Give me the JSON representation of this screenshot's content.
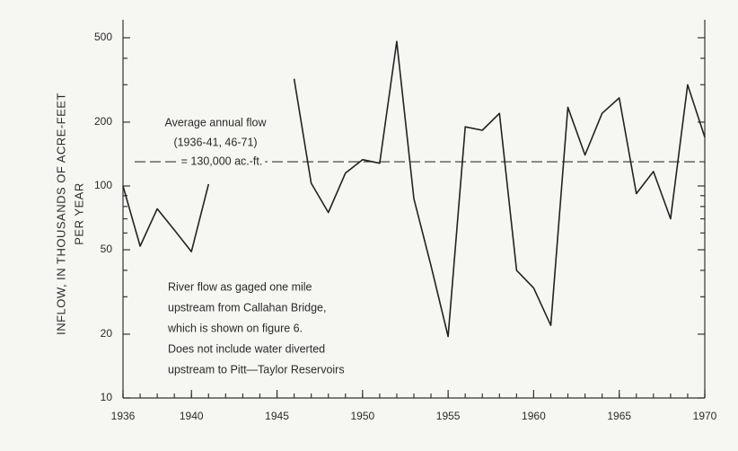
{
  "chart_data": {
    "type": "line",
    "y_label": [
      "INFLOW, IN THOUSANDS OF ACRE-FEET",
      "PER YEAR"
    ],
    "x": [
      1936,
      1937,
      1938,
      1939,
      1940,
      1941,
      1942,
      1943,
      1944,
      1945,
      1946,
      1947,
      1948,
      1949,
      1950,
      1951,
      1952,
      1953,
      1954,
      1955,
      1956,
      1957,
      1958,
      1959,
      1960,
      1961,
      1962,
      1963,
      1964,
      1965,
      1966,
      1967,
      1968,
      1969,
      1970
    ],
    "series": [
      {
        "name": "Inflow",
        "color": "#222222",
        "values": [
          100,
          52,
          78,
          62,
          49,
          102,
          null,
          null,
          null,
          null,
          320,
          103,
          75,
          115,
          133,
          128,
          480,
          87,
          42,
          19.5,
          190,
          183,
          220,
          40,
          33,
          22,
          235,
          140,
          220,
          260,
          92,
          117,
          70,
          300,
          170
        ]
      }
    ],
    "average": {
      "value": 130,
      "label_lines": [
        "Average annual flow",
        "(1936-41, 46-71)",
        "= 130,000 ac.-ft."
      ]
    },
    "note_lines": [
      "River flow as gaged one mile",
      "upstream from Callahan Bridge,",
      "which is shown on figure 6.",
      "Does not include water diverted",
      "upstream to Pitt—Taylor Reservoirs"
    ],
    "xlim": [
      1936,
      1970
    ],
    "xticks": [
      1936,
      1940,
      1945,
      1950,
      1955,
      1960,
      1965,
      1970
    ],
    "ylim": [
      10,
      500
    ],
    "yticks": [
      10,
      20,
      50,
      100,
      200,
      500
    ],
    "yminor_ticks": [
      30,
      40,
      60,
      70,
      80,
      90,
      300,
      400
    ],
    "log_y": true
  }
}
